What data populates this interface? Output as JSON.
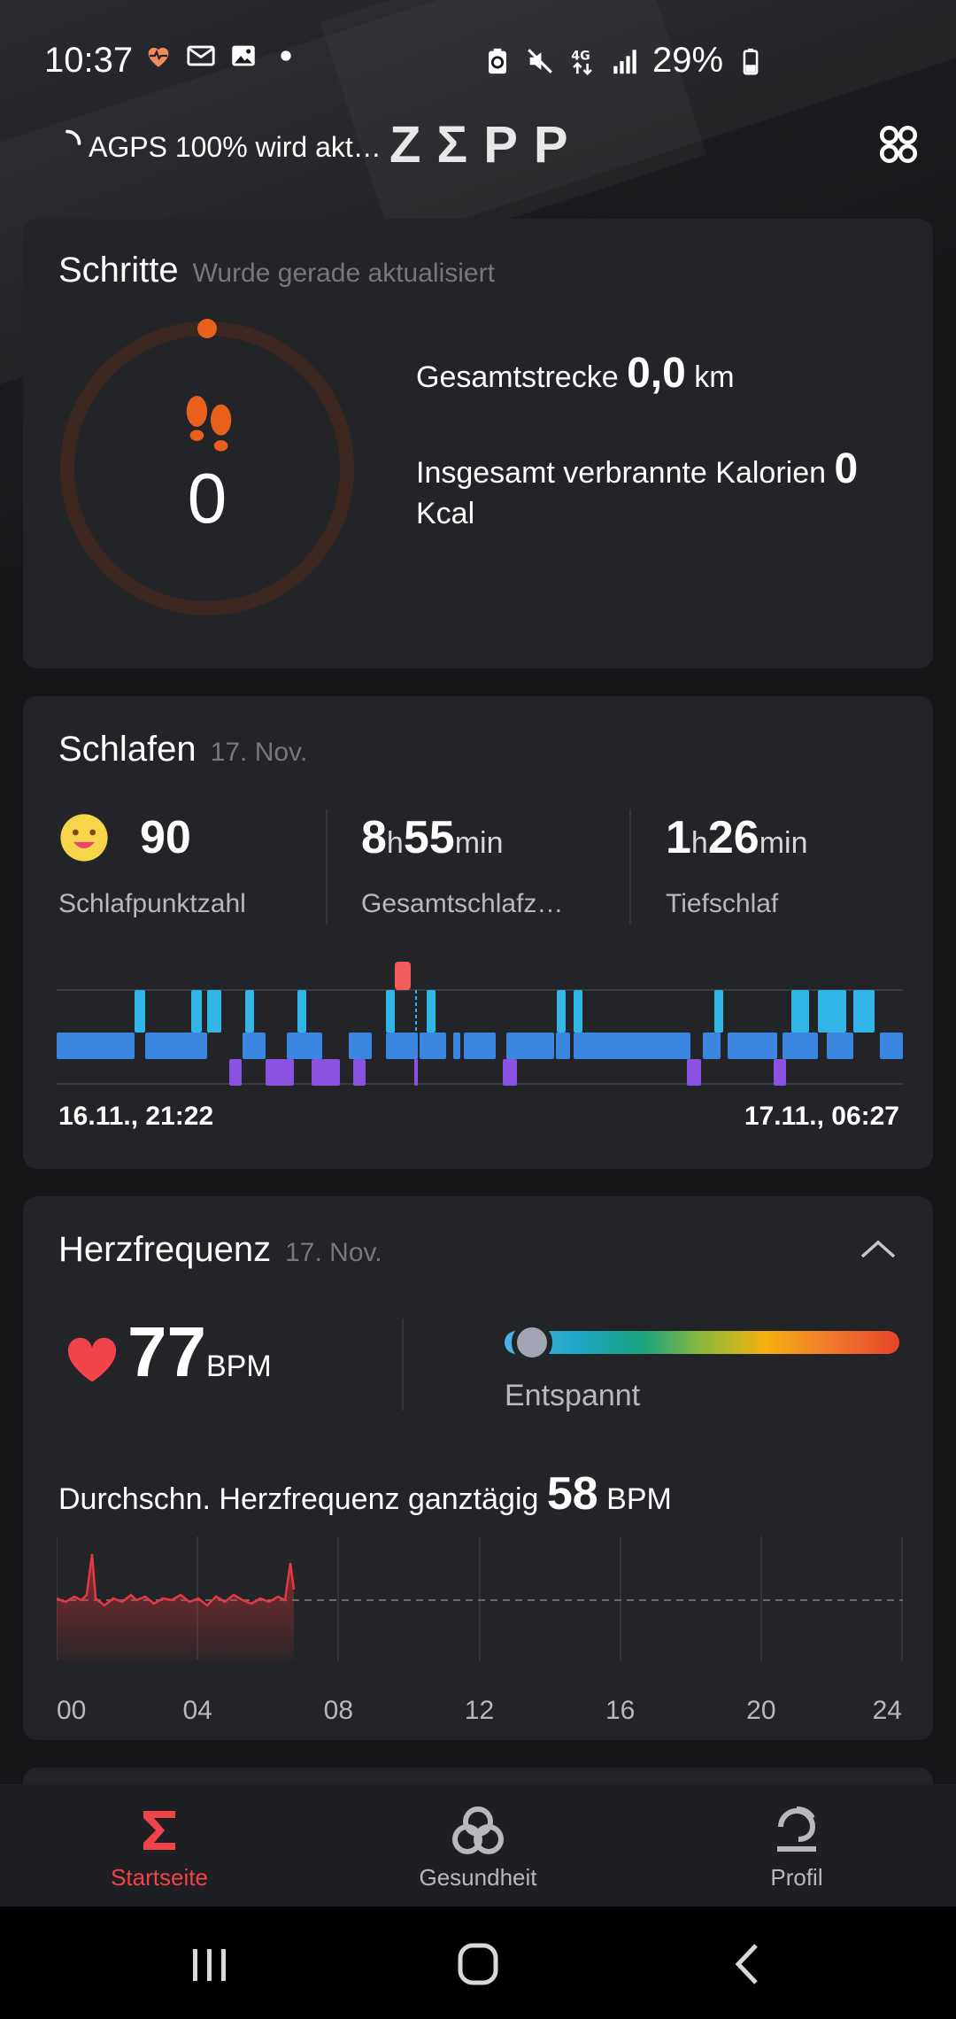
{
  "status_bar": {
    "time": "10:37",
    "battery_percent": "29%"
  },
  "header": {
    "agps_status": "AGPS 100% wird akt…",
    "logo": "ZΣPP"
  },
  "steps_card": {
    "title": "Schritte",
    "subtitle": "Wurde gerade aktualisiert",
    "steps_value": "0",
    "distance_label": "Gesamtstrecke",
    "distance_value": "0,0",
    "distance_unit": "km",
    "calories_label": "Insgesamt verbrannte Kalorien",
    "calories_value": "0",
    "calories_unit": "Kcal",
    "accent_color": "#e8601c"
  },
  "sleep_card": {
    "title": "Schlafen",
    "date": "17. Nov.",
    "score_value": "90",
    "score_label": "Schlafpunktzahl",
    "total_hours": "8",
    "total_minutes": "55",
    "total_label": "Gesamtschlafz…",
    "deep_hours": "1",
    "deep_minutes": "26",
    "deep_label": "Tiefschlaf",
    "unit_h": "h",
    "unit_min": "min",
    "start_time": "16.11., 21:22",
    "end_time": "17.11., 06:27"
  },
  "heart_card": {
    "title": "Herzfrequenz",
    "date": "17. Nov.",
    "current_value": "77",
    "unit": "BPM",
    "zone_label": "Entspannt",
    "avg_label": "Durchschn. Herzfrequenz ganztägig",
    "avg_value": "58",
    "avg_unit": "BPM",
    "x_ticks": [
      "00",
      "04",
      "08",
      "12",
      "16",
      "20",
      "24"
    ]
  },
  "bottom_nav": {
    "items": [
      {
        "label": "Startseite",
        "active": true
      },
      {
        "label": "Gesundheit",
        "active": false
      },
      {
        "label": "Profil",
        "active": false
      }
    ],
    "active_color": "#f0434a"
  }
}
